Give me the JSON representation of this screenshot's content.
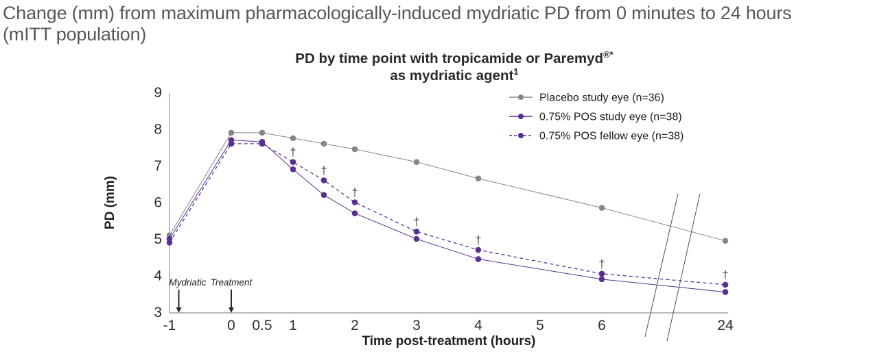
{
  "header": {
    "line1": "Change (mm) from maximum pharmacologically-induced mydriatic PD from 0 minutes to 24 hours",
    "line2": "(mITT population)"
  },
  "chart_data": {
    "type": "line",
    "title_line1": "PD by time point with tropicamide or Paremyd",
    "title_line1_sup": "®*",
    "title_line2": "as mydriatic agent",
    "title_line2_sup": "1",
    "xlabel": "Time post-treatment (hours)",
    "ylabel": "PD (mm)",
    "ylim": [
      3,
      9
    ],
    "yticks": [
      9,
      8,
      7,
      6,
      5,
      4,
      3
    ],
    "xticks": [
      -1,
      0,
      0.5,
      1,
      2,
      3,
      4,
      5,
      6,
      24
    ],
    "axis_break_between": [
      6,
      24
    ],
    "grid": false,
    "legend_position": "top-right",
    "dagger_symbol": "†",
    "annotations": [
      {
        "label": "Mydriatic",
        "x": -0.85,
        "label_dx": 13
      },
      {
        "label": "Treatment",
        "x": 0,
        "label_dx": 0
      }
    ],
    "series": [
      {
        "name": "Placebo study eye (n=36)",
        "color": "#85868a",
        "style": "solid",
        "x": [
          -1,
          0,
          0.5,
          1,
          1.5,
          2,
          3,
          4,
          6,
          24
        ],
        "y": [
          5.1,
          7.9,
          7.9,
          7.75,
          7.6,
          7.45,
          7.1,
          6.65,
          5.85,
          4.95
        ],
        "daggers": []
      },
      {
        "name": "0.75% POS study eye (n=38)",
        "color": "#5b2f91",
        "style": "solid",
        "x": [
          -1,
          0,
          0.5,
          1,
          1.5,
          2,
          3,
          4,
          6,
          24
        ],
        "y": [
          5.0,
          7.7,
          7.65,
          6.9,
          6.2,
          5.7,
          5.0,
          4.45,
          3.9,
          3.55
        ],
        "daggers": []
      },
      {
        "name": "0.75% POS fellow eye (n=38)",
        "color": "#5b2f91",
        "style": "dashed",
        "x": [
          -1,
          0,
          0.5,
          1,
          1.5,
          2,
          3,
          4,
          6,
          24
        ],
        "y": [
          4.9,
          7.6,
          7.6,
          7.1,
          6.6,
          6.0,
          5.2,
          4.7,
          4.05,
          3.75
        ],
        "daggers": [
          1,
          1.5,
          2,
          3,
          4,
          6,
          24
        ]
      }
    ]
  }
}
